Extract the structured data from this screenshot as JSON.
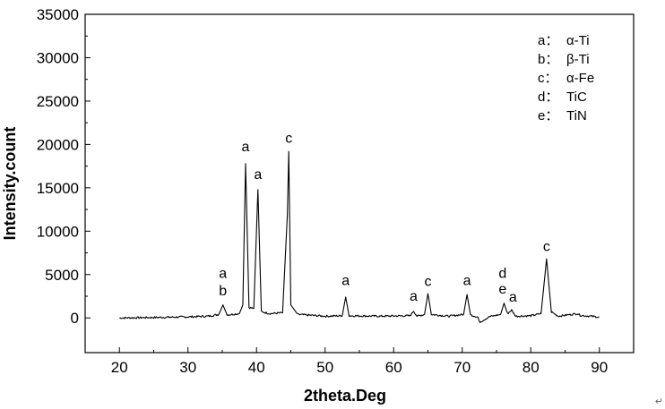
{
  "chart_data": {
    "type": "line",
    "title": "",
    "xlabel": "2theta.Deg",
    "ylabel": "Intensity.count",
    "xlim": [
      15,
      95
    ],
    "ylim": [
      -4000,
      35000
    ],
    "x_ticks": [
      20,
      30,
      40,
      50,
      60,
      70,
      80,
      90
    ],
    "y_ticks": [
      0,
      5000,
      10000,
      15000,
      20000,
      25000,
      30000,
      35000
    ],
    "grid": false,
    "legend_position": "top-right",
    "line_color": "#000000",
    "series": [
      {
        "values": [
          [
            20,
            0
          ],
          [
            25,
            50
          ],
          [
            30,
            120
          ],
          [
            33,
            200
          ],
          [
            34.5,
            400
          ],
          [
            35.1,
            1500
          ],
          [
            35.7,
            350
          ],
          [
            37.5,
            500
          ],
          [
            38.0,
            1500
          ],
          [
            38.4,
            17800
          ],
          [
            38.9,
            1200
          ],
          [
            39.6,
            1100
          ],
          [
            40.2,
            14800
          ],
          [
            40.7,
            700
          ],
          [
            42,
            500
          ],
          [
            43.8,
            600
          ],
          [
            44.5,
            12000
          ],
          [
            44.7,
            19200
          ],
          [
            45.0,
            1500
          ],
          [
            46,
            400
          ],
          [
            50,
            200
          ],
          [
            52.5,
            250
          ],
          [
            53.0,
            2400
          ],
          [
            53.5,
            250
          ],
          [
            58,
            200
          ],
          [
            62.4,
            250
          ],
          [
            62.9,
            800
          ],
          [
            63.4,
            200
          ],
          [
            64.5,
            400
          ],
          [
            65.0,
            2800
          ],
          [
            65.5,
            400
          ],
          [
            68,
            200
          ],
          [
            70.2,
            400
          ],
          [
            70.7,
            2700
          ],
          [
            71.2,
            350
          ],
          [
            72.3,
            100
          ],
          [
            72.5,
            -500
          ],
          [
            74,
            150
          ],
          [
            75.6,
            400
          ],
          [
            76.1,
            1700
          ],
          [
            76.6,
            500
          ],
          [
            77.2,
            900
          ],
          [
            77.8,
            200
          ],
          [
            80,
            250
          ],
          [
            81.5,
            500
          ],
          [
            82.3,
            6800
          ],
          [
            83.0,
            700
          ],
          [
            84,
            200
          ],
          [
            86.8,
            500
          ],
          [
            87.2,
            300
          ],
          [
            90,
            100
          ]
        ]
      }
    ],
    "annotations": [
      {
        "text": "a",
        "x": 35.1,
        "y": 4600
      },
      {
        "text": "b",
        "x": 35.1,
        "y": 2600
      },
      {
        "text": "a",
        "x": 38.4,
        "y": 19200
      },
      {
        "text": "a",
        "x": 40.2,
        "y": 16000
      },
      {
        "text": "c",
        "x": 44.7,
        "y": 20200
      },
      {
        "text": "a",
        "x": 53.0,
        "y": 3800
      },
      {
        "text": "a",
        "x": 62.9,
        "y": 2000
      },
      {
        "text": "c",
        "x": 65.0,
        "y": 3700
      },
      {
        "text": "a",
        "x": 70.7,
        "y": 3800
      },
      {
        "text": "d",
        "x": 75.9,
        "y": 4600
      },
      {
        "text": "e",
        "x": 75.9,
        "y": 2800
      },
      {
        "text": "a",
        "x": 77.4,
        "y": 1900
      },
      {
        "text": "c",
        "x": 82.3,
        "y": 7700
      }
    ],
    "legend": [
      {
        "key": "a：",
        "label": "α-Ti"
      },
      {
        "key": "b：",
        "label": "β-Ti"
      },
      {
        "key": "c：",
        "label": "α-Fe"
      },
      {
        "key": "d：",
        "label": "TiC"
      },
      {
        "key": "e：",
        "label": "TiN"
      }
    ]
  },
  "trailing_mark": "↵"
}
